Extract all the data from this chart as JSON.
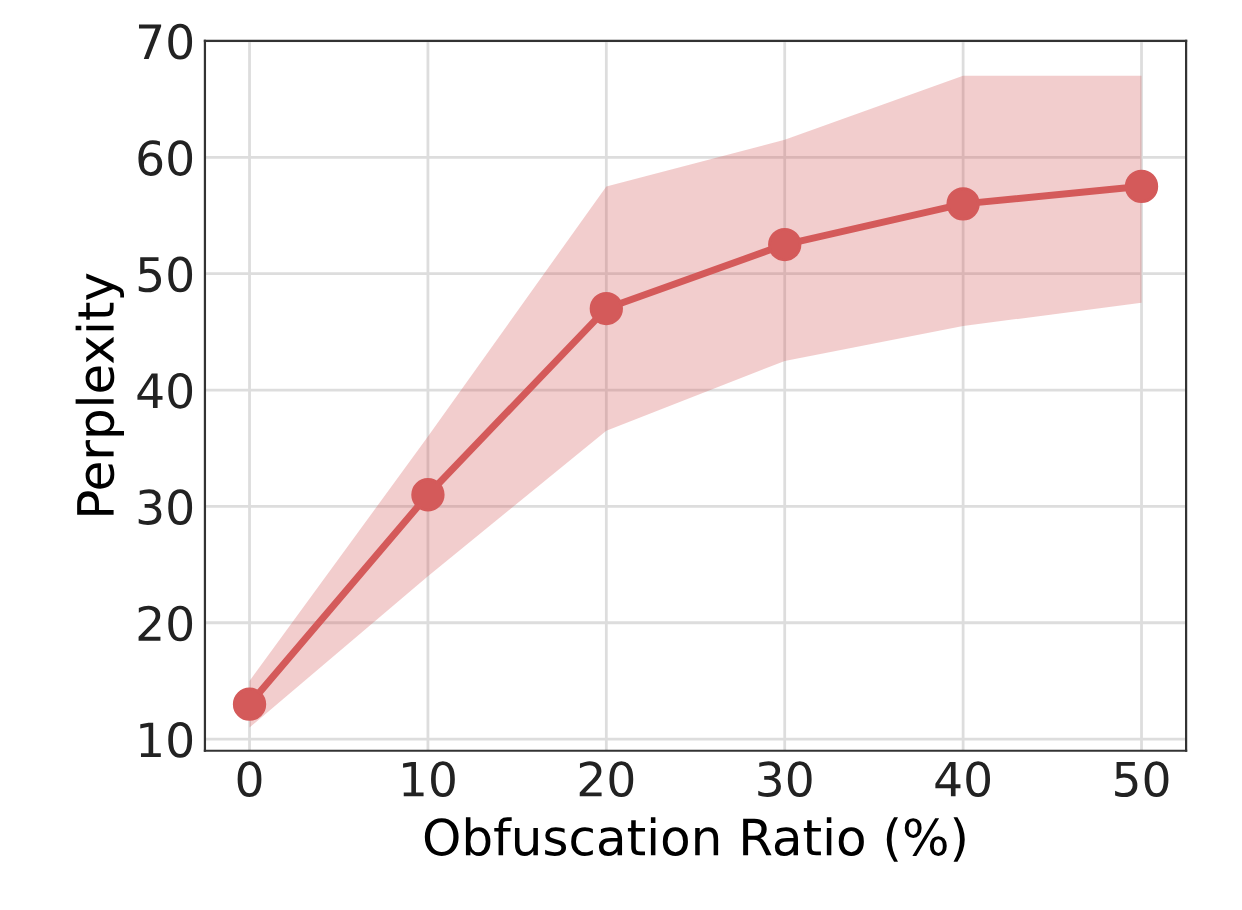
{
  "chart_data": {
    "type": "line",
    "xlabel": "Obfuscation Ratio (%)",
    "ylabel": "Perplexity",
    "x": [
      0,
      10,
      20,
      30,
      40,
      50
    ],
    "series": [
      {
        "color": "#d45a5a",
        "values": [
          13,
          31,
          47,
          52.5,
          56,
          57.5
        ],
        "lower": [
          11,
          24,
          36.5,
          42.5,
          45.5,
          47.5
        ],
        "upper": [
          15,
          36,
          57.5,
          61.5,
          67,
          67
        ]
      }
    ],
    "xlim": [
      -2.5,
      52.5
    ],
    "xticks": [
      0,
      10,
      20,
      30,
      40,
      50
    ],
    "ylim": [
      9,
      70
    ],
    "yticks": [
      10,
      20,
      30,
      40,
      50,
      60,
      70
    ],
    "grid": true,
    "marker": "circle",
    "line_style": "solid"
  }
}
